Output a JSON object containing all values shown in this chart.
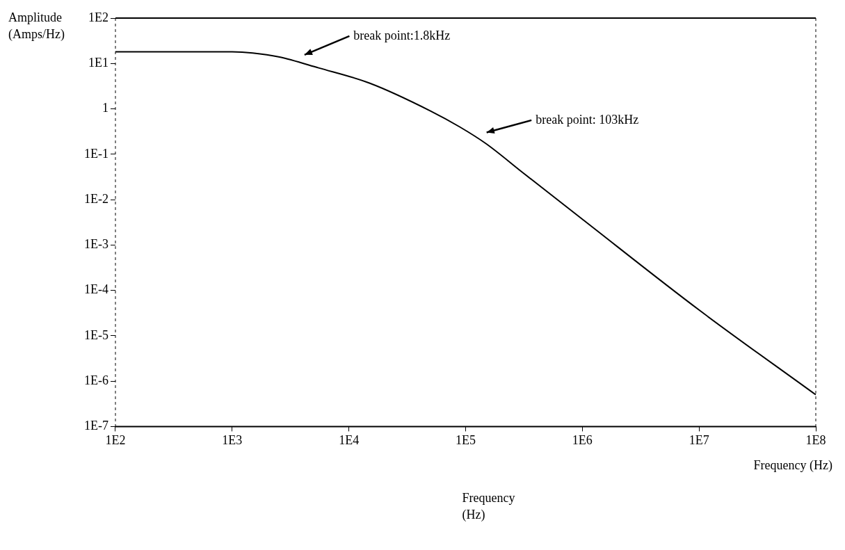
{
  "chart_data": {
    "type": "line",
    "ylabel": "Amplitude (Amps/Hz)",
    "xlabel": "Frequency (Hz)",
    "log": "xy",
    "grid": false,
    "legend": false,
    "xlim": [
      100,
      100000000
    ],
    "ylim": [
      1e-07,
      100
    ],
    "xticks": [
      {
        "value": 100,
        "label": "1E2"
      },
      {
        "value": 1000,
        "label": "1E3"
      },
      {
        "value": 10000,
        "label": "1E4"
      },
      {
        "value": 100000,
        "label": "1E5"
      },
      {
        "value": 1000000,
        "label": "1E6"
      },
      {
        "value": 10000000,
        "label": "1E7"
      },
      {
        "value": 100000000,
        "label": "1E8"
      }
    ],
    "yticks": [
      {
        "value": 1e-07,
        "label": "1E-7"
      },
      {
        "value": 1e-06,
        "label": "1E-6"
      },
      {
        "value": 1e-05,
        "label": "1E-5"
      },
      {
        "value": 0.0001,
        "label": "1E-4"
      },
      {
        "value": 0.001,
        "label": "1E-3"
      },
      {
        "value": 0.01,
        "label": "1E-2"
      },
      {
        "value": 0.1,
        "label": "1E-1"
      },
      1,
      {
        "value": 10,
        "label": "1E1"
      },
      {
        "value": 100,
        "label": "1E2"
      }
    ],
    "series": [
      {
        "color": "#000000",
        "x": [
          100,
          1000,
          1500,
          2500,
          5500,
          15000,
          50000,
          89000,
          150000,
          310000,
          1000000,
          10000000,
          100000000
        ],
        "values": [
          18,
          18,
          17,
          14,
          8,
          3.7,
          0.9,
          0.4,
          0.17,
          0.039,
          0.0037,
          3.7e-05,
          5e-07
        ]
      }
    ],
    "annotations": [
      "break point:1.8kHz",
      "break point: 103kHz",
      "Frequency\n(Hz)"
    ]
  }
}
